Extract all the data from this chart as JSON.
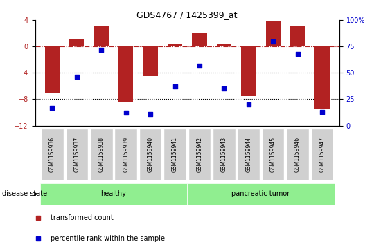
{
  "title": "GDS4767 / 1425399_at",
  "samples": [
    "GSM1159936",
    "GSM1159937",
    "GSM1159938",
    "GSM1159939",
    "GSM1159940",
    "GSM1159941",
    "GSM1159942",
    "GSM1159943",
    "GSM1159944",
    "GSM1159945",
    "GSM1159946",
    "GSM1159947"
  ],
  "transformed_count": [
    -7.0,
    1.2,
    3.2,
    -8.5,
    -4.5,
    0.3,
    2.0,
    0.3,
    -7.5,
    3.8,
    3.2,
    -9.5
  ],
  "percentile_rank": [
    17,
    46,
    72,
    12,
    11,
    37,
    57,
    35,
    20,
    80,
    68,
    13
  ],
  "bar_color": "#B22222",
  "dot_color": "#0000CD",
  "left_ylim": [
    -12,
    4
  ],
  "left_yticks": [
    -12,
    -8,
    -4,
    0,
    4
  ],
  "right_ylim": [
    0,
    100
  ],
  "right_yticks": [
    0,
    25,
    50,
    75,
    100
  ],
  "right_yticklabels": [
    "0",
    "25",
    "50",
    "75",
    "100%"
  ],
  "hline_y": 0,
  "dotted_lines": [
    -4,
    -8
  ],
  "healthy_count": 6,
  "group_labels": [
    "healthy",
    "pancreatic tumor"
  ],
  "group_color": "#90EE90",
  "disease_state_label": "disease state",
  "legend_items": [
    {
      "label": "transformed count",
      "color": "#B22222"
    },
    {
      "label": "percentile rank within the sample",
      "color": "#0000CD"
    }
  ]
}
